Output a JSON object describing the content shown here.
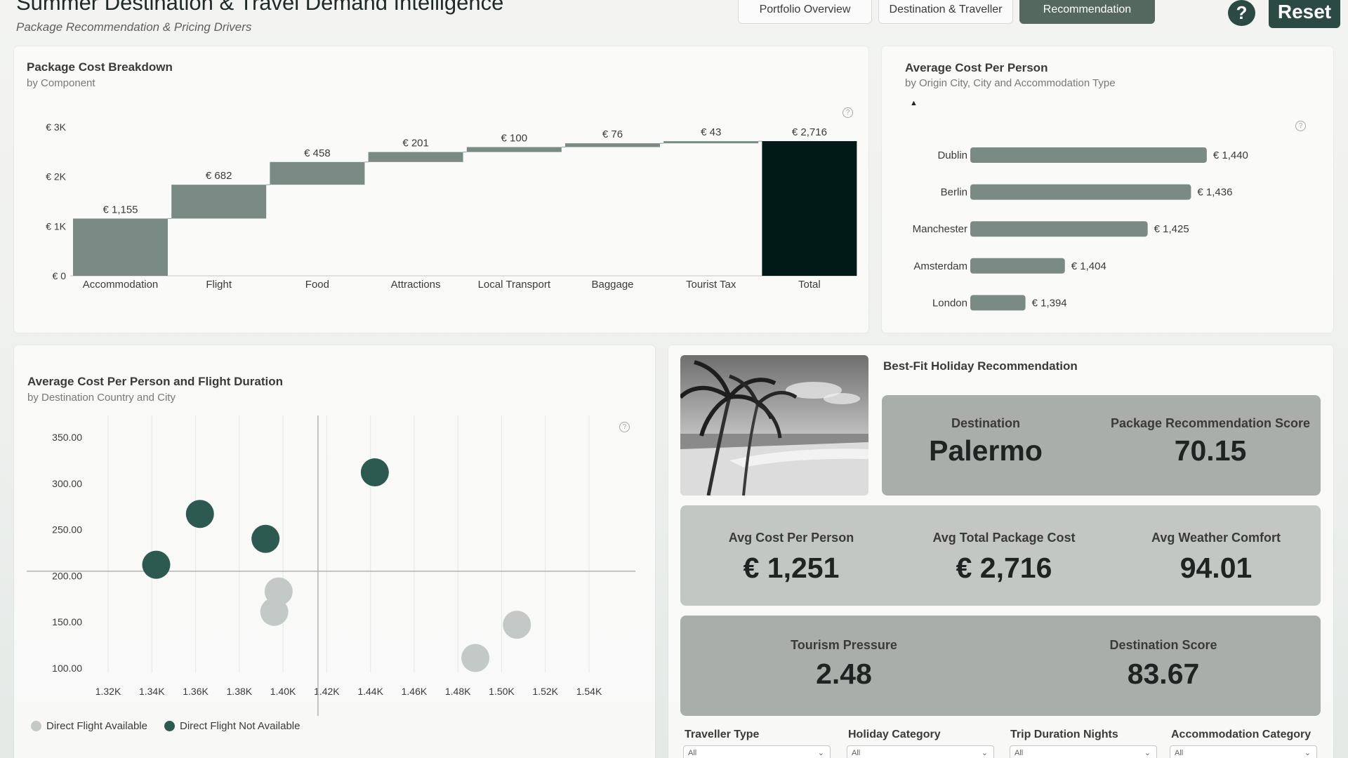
{
  "header": {
    "title": "Summer Destination & Travel Demand Intelligence",
    "subtitle": "Package Recommendation & Pricing Drivers"
  },
  "nav": {
    "tabs": [
      {
        "label": "Portfolio Overview",
        "active": false
      },
      {
        "label": "Destination & Traveller",
        "active": false
      },
      {
        "label": "Recommendation",
        "active": true
      }
    ],
    "help_label": "?",
    "reset_label": "Reset"
  },
  "cost_breakdown": {
    "title": "Package Cost Breakdown",
    "subtitle": "by Component",
    "info": "?"
  },
  "cost_per_city": {
    "title": "Average Cost Per Person",
    "subtitle": "by Origin City, City and Accommodation Type",
    "info": "?",
    "drill_icon": "drill-up-icon"
  },
  "scatter": {
    "title": "Average Cost Per Person and Flight Duration",
    "subtitle": "by Destination Country and City",
    "info": "?",
    "legend": [
      {
        "label": "Direct Flight Available",
        "color": "#c3c9c6"
      },
      {
        "label": "Direct Flight Not Available",
        "color": "#2d5a50"
      }
    ]
  },
  "recommendation": {
    "title": "Best-Fit Holiday Recommendation",
    "destination_label": "Destination",
    "destination_value": "Palermo",
    "score_label": "Package Recommendation Score",
    "score_value": "70.15",
    "avg_cost_label": "Avg Cost Per Person",
    "avg_cost_value": "€ 1,251",
    "avg_total_label": "Avg Total Package Cost",
    "avg_total_value": "€ 2,716",
    "weather_label": "Avg Weather Comfort",
    "weather_value": "94.01",
    "tourism_label": "Tourism Pressure",
    "tourism_value": "2.48",
    "dest_score_label": "Destination Score",
    "dest_score_value": "83.67"
  },
  "slicers": [
    {
      "label": "Traveller Type",
      "value": "All"
    },
    {
      "label": "Holiday Category",
      "value": "All"
    },
    {
      "label": "Trip Duration Nights",
      "value": "All"
    },
    {
      "label": "Accommodation Category",
      "value": "All"
    }
  ],
  "colors": {
    "bar": "#7a8a85",
    "total_bar": "#021a17",
    "dark_dot": "#2d5a50",
    "light_dot": "#c3c9c6",
    "accent": "#2a4a43"
  },
  "chart_data": [
    {
      "type": "bar",
      "subtype": "waterfall",
      "title": "Package Cost Breakdown",
      "categories": [
        "Accommodation",
        "Flight",
        "Food",
        "Attractions",
        "Local Transport",
        "Baggage",
        "Tourist Tax",
        "Total"
      ],
      "values": [
        1155,
        682,
        458,
        201,
        100,
        76,
        43,
        2716
      ],
      "data_labels": [
        "€ 1,155",
        "€ 682",
        "€ 458",
        "€ 201",
        "€ 100",
        "€ 76",
        "€ 43",
        "€ 2,716"
      ],
      "y_ticks": [
        "€ 0",
        "€ 1K",
        "€ 2K",
        "€ 3K"
      ],
      "ylim": [
        0,
        3000
      ]
    },
    {
      "type": "bar",
      "orientation": "horizontal",
      "title": "Average Cost Per Person",
      "categories": [
        "Dublin",
        "Berlin",
        "Manchester",
        "Amsterdam",
        "London"
      ],
      "values": [
        1440,
        1436,
        1425,
        1404,
        1394
      ],
      "data_labels": [
        "€ 1,440",
        "€ 1,436",
        "€ 1,425",
        "€ 1,404",
        "€ 1,394"
      ],
      "xlim": [
        1380,
        1450
      ]
    },
    {
      "type": "scatter",
      "title": "Average Cost Per Person and Flight Duration",
      "x_ticks": [
        "1.32K",
        "1.34K",
        "1.36K",
        "1.38K",
        "1.40K",
        "1.42K",
        "1.44K",
        "1.46K",
        "1.48K",
        "1.50K",
        "1.52K",
        "1.54K"
      ],
      "y_ticks": [
        "100.00",
        "150.00",
        "200.00",
        "250.00",
        "300.00",
        "350.00"
      ],
      "xlim": [
        1320,
        1540
      ],
      "ylim": [
        100,
        350
      ],
      "reference_lines": {
        "x": 1416,
        "y": 205
      },
      "series": [
        {
          "name": "Direct Flight Available",
          "points": [
            [
              1398,
              183
            ],
            [
              1396,
              161
            ],
            [
              1488,
              111
            ],
            [
              1507,
              147
            ]
          ]
        },
        {
          "name": "Direct Flight Not Available",
          "points": [
            [
              1442,
              312
            ],
            [
              1362,
              267
            ],
            [
              1392,
              240
            ],
            [
              1342,
              212
            ]
          ]
        }
      ]
    }
  ]
}
